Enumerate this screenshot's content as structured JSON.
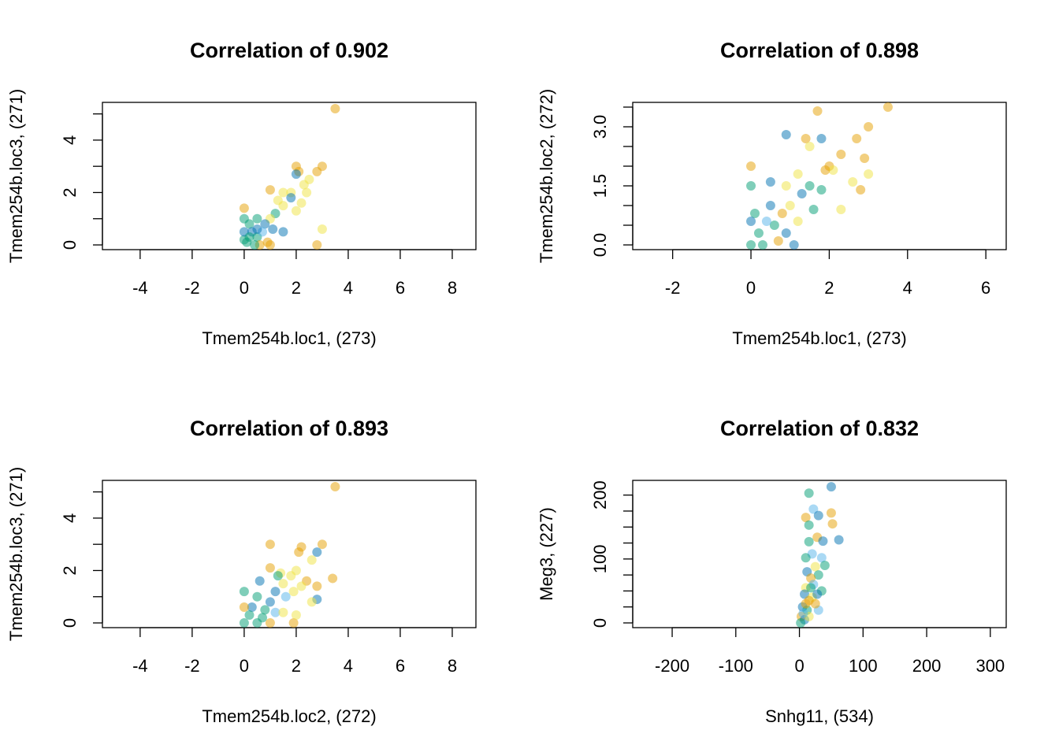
{
  "chart_data": [
    {
      "type": "scatter",
      "title": "Correlation of 0.902",
      "xlabel": "Tmem254b.loc1, (273)",
      "ylabel": "Tmem254b.loc3, (271)",
      "x": [
        3.5,
        3.0,
        2.8,
        2.0,
        2.1,
        2.0,
        2.3,
        2.5,
        2.4,
        3.0,
        2.8,
        1.0,
        1.5,
        1.8,
        1.5,
        1.2,
        1.5,
        1.0,
        0.8,
        0.5,
        0.0,
        0.0,
        0.2,
        0.3,
        0.0,
        0.1,
        0.5,
        0.6,
        1.0,
        0.9,
        0.4,
        0.0,
        0.7,
        1.8,
        2.2,
        1.3,
        0.2,
        0.5,
        1.1,
        2.0
      ],
      "y": [
        5.2,
        3.0,
        2.8,
        3.0,
        2.8,
        2.7,
        2.3,
        2.5,
        2.0,
        0.6,
        0.0,
        2.1,
        2.0,
        2.0,
        1.5,
        1.2,
        0.5,
        1.0,
        0.8,
        1.0,
        1.4,
        1.0,
        0.8,
        0.5,
        0.2,
        0.1,
        0.3,
        0.0,
        0.0,
        0.1,
        0.0,
        0.5,
        0.5,
        1.8,
        1.6,
        1.7,
        0.3,
        0.6,
        0.6,
        1.3
      ],
      "colors": [
        "#E69F00",
        "#E69F00",
        "#E69F00",
        "#E69F00",
        "#E69F00",
        "#0072B2",
        "#F0E442",
        "#F0E442",
        "#F0E442",
        "#F0E442",
        "#E69F00",
        "#E69F00",
        "#F0E442",
        "#F0E442",
        "#F0E442",
        "#009E73",
        "#0072B2",
        "#F0E442",
        "#0072B2",
        "#009E73",
        "#E69F00",
        "#009E73",
        "#009E73",
        "#0072B2",
        "#009E73",
        "#009E73",
        "#009E73",
        "#E69F00",
        "#E69F00",
        "#E69F00",
        "#009E73",
        "#0072B2",
        "#56B4E9",
        "#0072B2",
        "#F0E442",
        "#F0E442",
        "#009E73",
        "#0072B2",
        "#0072B2",
        "#F0E442"
      ],
      "xlim": [
        -5.45,
        8.91
      ],
      "ylim": [
        -0.18,
        5.44
      ],
      "xticks": [
        -4,
        -2,
        0,
        2,
        4,
        6,
        8
      ],
      "yticks": [
        0,
        2,
        4
      ],
      "y_minor_ticks": [
        1,
        3,
        5
      ]
    },
    {
      "type": "scatter",
      "title": "Correlation of 0.898",
      "xlabel": "Tmem254b.loc1, (273)",
      "ylabel": "Tmem254b.loc2, (272)",
      "x": [
        3.5,
        3.0,
        2.9,
        2.8,
        2.7,
        3.0,
        1.7,
        1.4,
        0.9,
        1.8,
        1.5,
        2.0,
        2.3,
        2.1,
        0.0,
        0.0,
        0.5,
        0.9,
        1.2,
        1.8,
        2.3,
        1.3,
        1.0,
        0.5,
        0.8,
        0.6,
        0.2,
        0.0,
        0.3,
        1.1,
        0.7,
        0.1,
        0.4,
        1.5,
        1.9,
        2.6,
        1.6,
        0.0,
        0.9,
        1.2
      ],
      "y": [
        3.5,
        3.0,
        2.2,
        1.4,
        2.7,
        1.8,
        3.4,
        2.7,
        2.8,
        2.7,
        2.5,
        2.0,
        2.3,
        1.9,
        2.0,
        1.5,
        1.6,
        1.5,
        1.8,
        1.4,
        0.9,
        1.3,
        1.0,
        1.0,
        0.8,
        0.5,
        0.3,
        0.0,
        0.0,
        0.0,
        0.1,
        0.8,
        0.6,
        1.5,
        1.9,
        1.6,
        0.9,
        0.6,
        0.3,
        0.6
      ],
      "colors": [
        "#E69F00",
        "#E69F00",
        "#E69F00",
        "#E69F00",
        "#E69F00",
        "#F0E442",
        "#E69F00",
        "#E69F00",
        "#0072B2",
        "#0072B2",
        "#F0E442",
        "#E69F00",
        "#E69F00",
        "#F0E442",
        "#E69F00",
        "#009E73",
        "#0072B2",
        "#F0E442",
        "#F0E442",
        "#009E73",
        "#F0E442",
        "#0072B2",
        "#F0E442",
        "#0072B2",
        "#E69F00",
        "#009E73",
        "#009E73",
        "#009E73",
        "#009E73",
        "#0072B2",
        "#E69F00",
        "#009E73",
        "#56B4E9",
        "#009E73",
        "#E69F00",
        "#F0E442",
        "#009E73",
        "#0072B2",
        "#0072B2",
        "#F0E442"
      ],
      "xlim": [
        -3.02,
        6.52
      ],
      "ylim": [
        -0.12,
        3.62
      ],
      "xticks": [
        -2,
        0,
        2,
        4,
        6
      ],
      "yticks": [
        {
          "value": 0,
          "label": "0.0"
        },
        {
          "value": 1.5,
          "label": "1.5"
        },
        {
          "value": 3,
          "label": "3.0"
        }
      ],
      "y_minor_ticks": [
        0.5,
        1,
        2,
        2.5,
        3.5
      ]
    },
    {
      "type": "scatter",
      "title": "Correlation of 0.893",
      "xlabel": "Tmem254b.loc2, (272)",
      "ylabel": "Tmem254b.loc3, (271)",
      "x": [
        3.5,
        3.0,
        2.2,
        2.1,
        1.0,
        2.8,
        2.8,
        3.4,
        2.8,
        1.0,
        1.4,
        2.0,
        2.6,
        1.9,
        0.6,
        1.5,
        2.4,
        2.6,
        0.0,
        0.5,
        0.3,
        1.0,
        1.2,
        0.0,
        0.5,
        1.0,
        1.9,
        2.0,
        1.5,
        0.7,
        0.2,
        0.0,
        1.2,
        1.6,
        0.8,
        2.2,
        1.8,
        1.3
      ],
      "y": [
        5.2,
        3.0,
        2.9,
        2.7,
        3.0,
        2.7,
        1.4,
        1.7,
        0.9,
        2.1,
        1.9,
        2.0,
        2.4,
        1.2,
        1.6,
        1.5,
        1.6,
        0.8,
        1.2,
        1.0,
        0.6,
        0.8,
        0.4,
        0.0,
        0.0,
        0.0,
        0.0,
        0.3,
        0.4,
        0.2,
        0.3,
        0.6,
        1.2,
        1.0,
        0.5,
        1.4,
        1.8,
        1.8
      ],
      "colors": [
        "#E69F00",
        "#E69F00",
        "#E69F00",
        "#E69F00",
        "#E69F00",
        "#0072B2",
        "#E69F00",
        "#E69F00",
        "#0072B2",
        "#E69F00",
        "#F0E442",
        "#F0E442",
        "#F0E442",
        "#F0E442",
        "#0072B2",
        "#F0E442",
        "#E69F00",
        "#F0E442",
        "#009E73",
        "#009E73",
        "#0072B2",
        "#0072B2",
        "#56B4E9",
        "#009E73",
        "#009E73",
        "#E69F00",
        "#E69F00",
        "#F0E442",
        "#F0E442",
        "#009E73",
        "#009E73",
        "#E69F00",
        "#0072B2",
        "#56B4E9",
        "#009E73",
        "#F0E442",
        "#F0E442",
        "#009E73"
      ],
      "xlim": [
        -5.45,
        8.91
      ],
      "ylim": [
        -0.18,
        5.44
      ],
      "xticks": [
        -4,
        -2,
        0,
        2,
        4,
        6,
        8
      ],
      "yticks": [
        0,
        2,
        4
      ],
      "y_minor_ticks": [
        1,
        3,
        5
      ]
    },
    {
      "type": "scatter",
      "title": "Correlation of 0.832",
      "xlabel": "Snhg11, (534)",
      "ylabel": "Meg3, (227)",
      "x": [
        50,
        15,
        22,
        50,
        30,
        10,
        52,
        15,
        62,
        28,
        37,
        15,
        20,
        10,
        35,
        40,
        25,
        12,
        30,
        18,
        22,
        10,
        35,
        8,
        20,
        15,
        30,
        5,
        12,
        3,
        8,
        2,
        15,
        25,
        18,
        6,
        28,
        10
      ],
      "y": [
        213,
        203,
        178,
        172,
        168,
        165,
        155,
        153,
        130,
        134,
        128,
        127,
        108,
        102,
        102,
        90,
        88,
        80,
        75,
        70,
        60,
        55,
        50,
        45,
        40,
        35,
        20,
        25,
        20,
        10,
        5,
        0,
        10,
        30,
        55,
        15,
        45,
        30
      ],
      "colors": [
        "#0072B2",
        "#009E73",
        "#56B4E9",
        "#E69F00",
        "#0072B2",
        "#E69F00",
        "#E69F00",
        "#009E73",
        "#0072B2",
        "#E69F00",
        "#0072B2",
        "#009E73",
        "#56B4E9",
        "#009E73",
        "#56B4E9",
        "#009E73",
        "#F0E442",
        "#0072B2",
        "#009E73",
        "#E69F00",
        "#56B4E9",
        "#F0E442",
        "#009E73",
        "#0072B2",
        "#F0E442",
        "#E69F00",
        "#56B4E9",
        "#0072B2",
        "#009E73",
        "#E69F00",
        "#0072B2",
        "#009E73",
        "#F0E442",
        "#E69F00",
        "#009E73",
        "#56B4E9",
        "#0072B2",
        "#E69F00"
      ],
      "xlim": [
        -262,
        325
      ],
      "ylim": [
        -7.4,
        223
      ],
      "xticks": [
        -200,
        -100,
        0,
        100,
        200,
        300
      ],
      "yticks": [
        0,
        100,
        200
      ],
      "y_minor_ticks": [
        25,
        50,
        75,
        125,
        150,
        175
      ]
    }
  ]
}
